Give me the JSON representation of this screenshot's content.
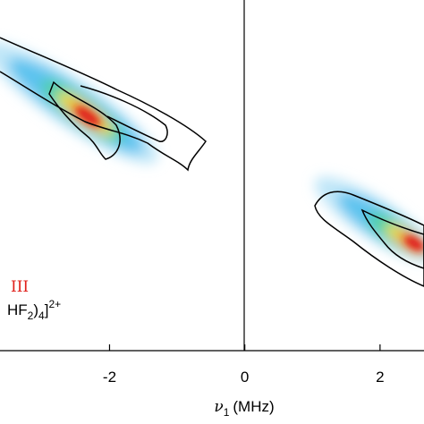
{
  "chart_data": {
    "type": "contour",
    "xlabel": {
      "symbol": "ν",
      "subscript": "1",
      "unit": "(MHz)"
    },
    "xlim": [
      -3.62,
      2.65
    ],
    "xticks": [
      -2,
      0,
      2
    ],
    "annotation": {
      "superscript": "III",
      "text": "HF",
      "sub1": "2",
      "mid": ")",
      "sub2": "4",
      "end": "]",
      "charge": "2+"
    }
  }
}
